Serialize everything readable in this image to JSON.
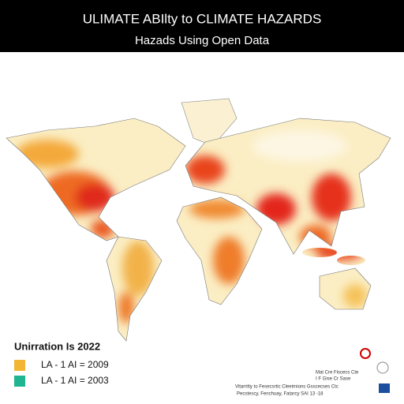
{
  "header": {
    "title": "ULIMATE ABIlty to CLIMATE HAZARDS",
    "subtitle": "Hazads Using Open Data"
  },
  "legend": {
    "title": "Unirration Is 2022",
    "items": [
      {
        "label": "LA - 1 AI = 2009",
        "color": "#f2b632"
      },
      {
        "label": "LA - 1 AI = 2003",
        "color": "#1fb592"
      }
    ]
  },
  "footnote": {
    "lines": [
      "Mat Cre Fiscecs Cte",
      "I F Gise Cr Sase",
      "Vitarritty to Fesecsrtic Cleeirnions Gsscecses Ctc",
      "Pecstescy, Fenchuay, Fatarcy SAI 13 -18"
    ]
  }
}
